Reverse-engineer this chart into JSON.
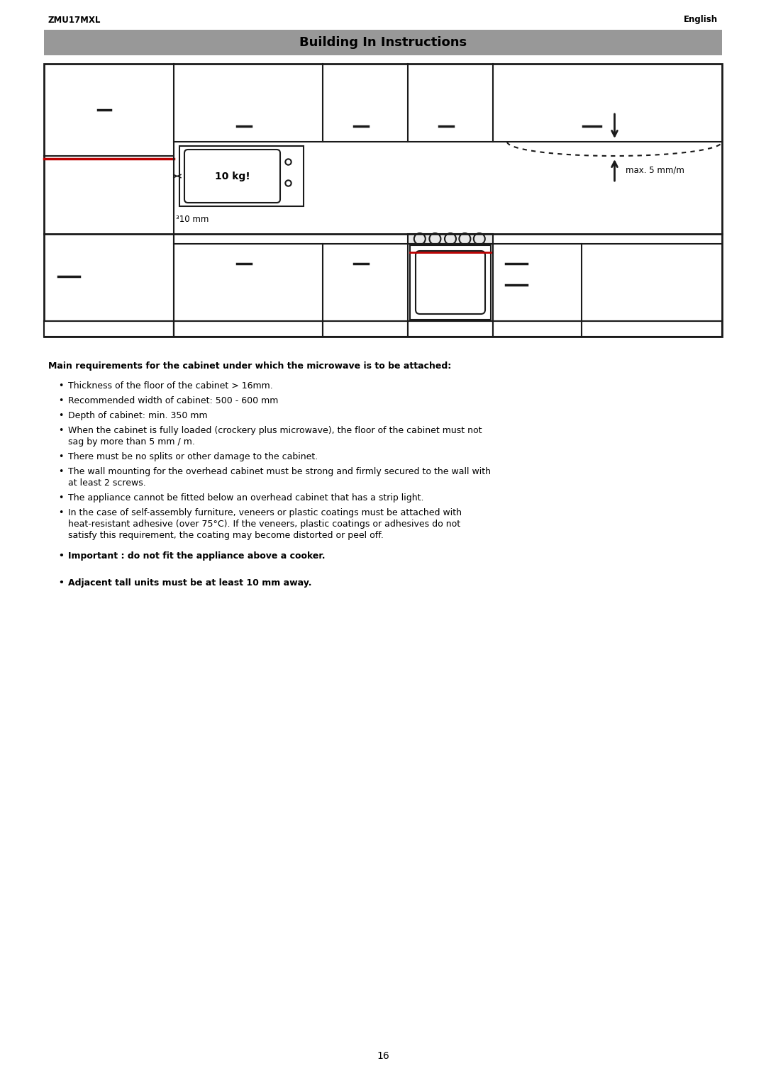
{
  "page_width": 10.8,
  "page_height": 15.28,
  "dpi": 100,
  "bg_color": "#ffffff",
  "header_left": "ZMU17MXL",
  "header_right": "English",
  "title": "Building In Instructions",
  "title_bg": "#989898",
  "footer_page": "16",
  "bullet_heading": "Main requirements for the cabinet under which the microwave is to be attached:",
  "bullets": [
    "Thickness of the floor of the cabinet > 16mm.",
    "Recommended width of cabinet: 500 - 600 mm",
    "Depth of cabinet: min. 350 mm",
    "When the cabinet is fully loaded (crockery plus microwave), the floor of the cabinet must not sag by more than 5 mm / m.",
    "There must be no splits or other damage to the cabinet.",
    "The wall mounting for the overhead cabinet must be strong and firmly secured to the wall with at least 2 screws.",
    "The appliance cannot be fitted below an overhead cabinet that has a strip light.",
    "In the case of self-assembly furniture, veneers or plastic coatings must be attached with heat-resistant adhesive (over 75°C). If the veneers, plastic coatings or adhesives do not satisfy this requirement, the coating may become distorted or peel off."
  ],
  "bold_bullets": [
    "Important : do not fit the appliance above a cooker.",
    "Adjacent tall units must be at least 10 mm away."
  ],
  "line_color": "#1a1a1a",
  "red_line_color": "#bb0000",
  "lw": 1.5
}
